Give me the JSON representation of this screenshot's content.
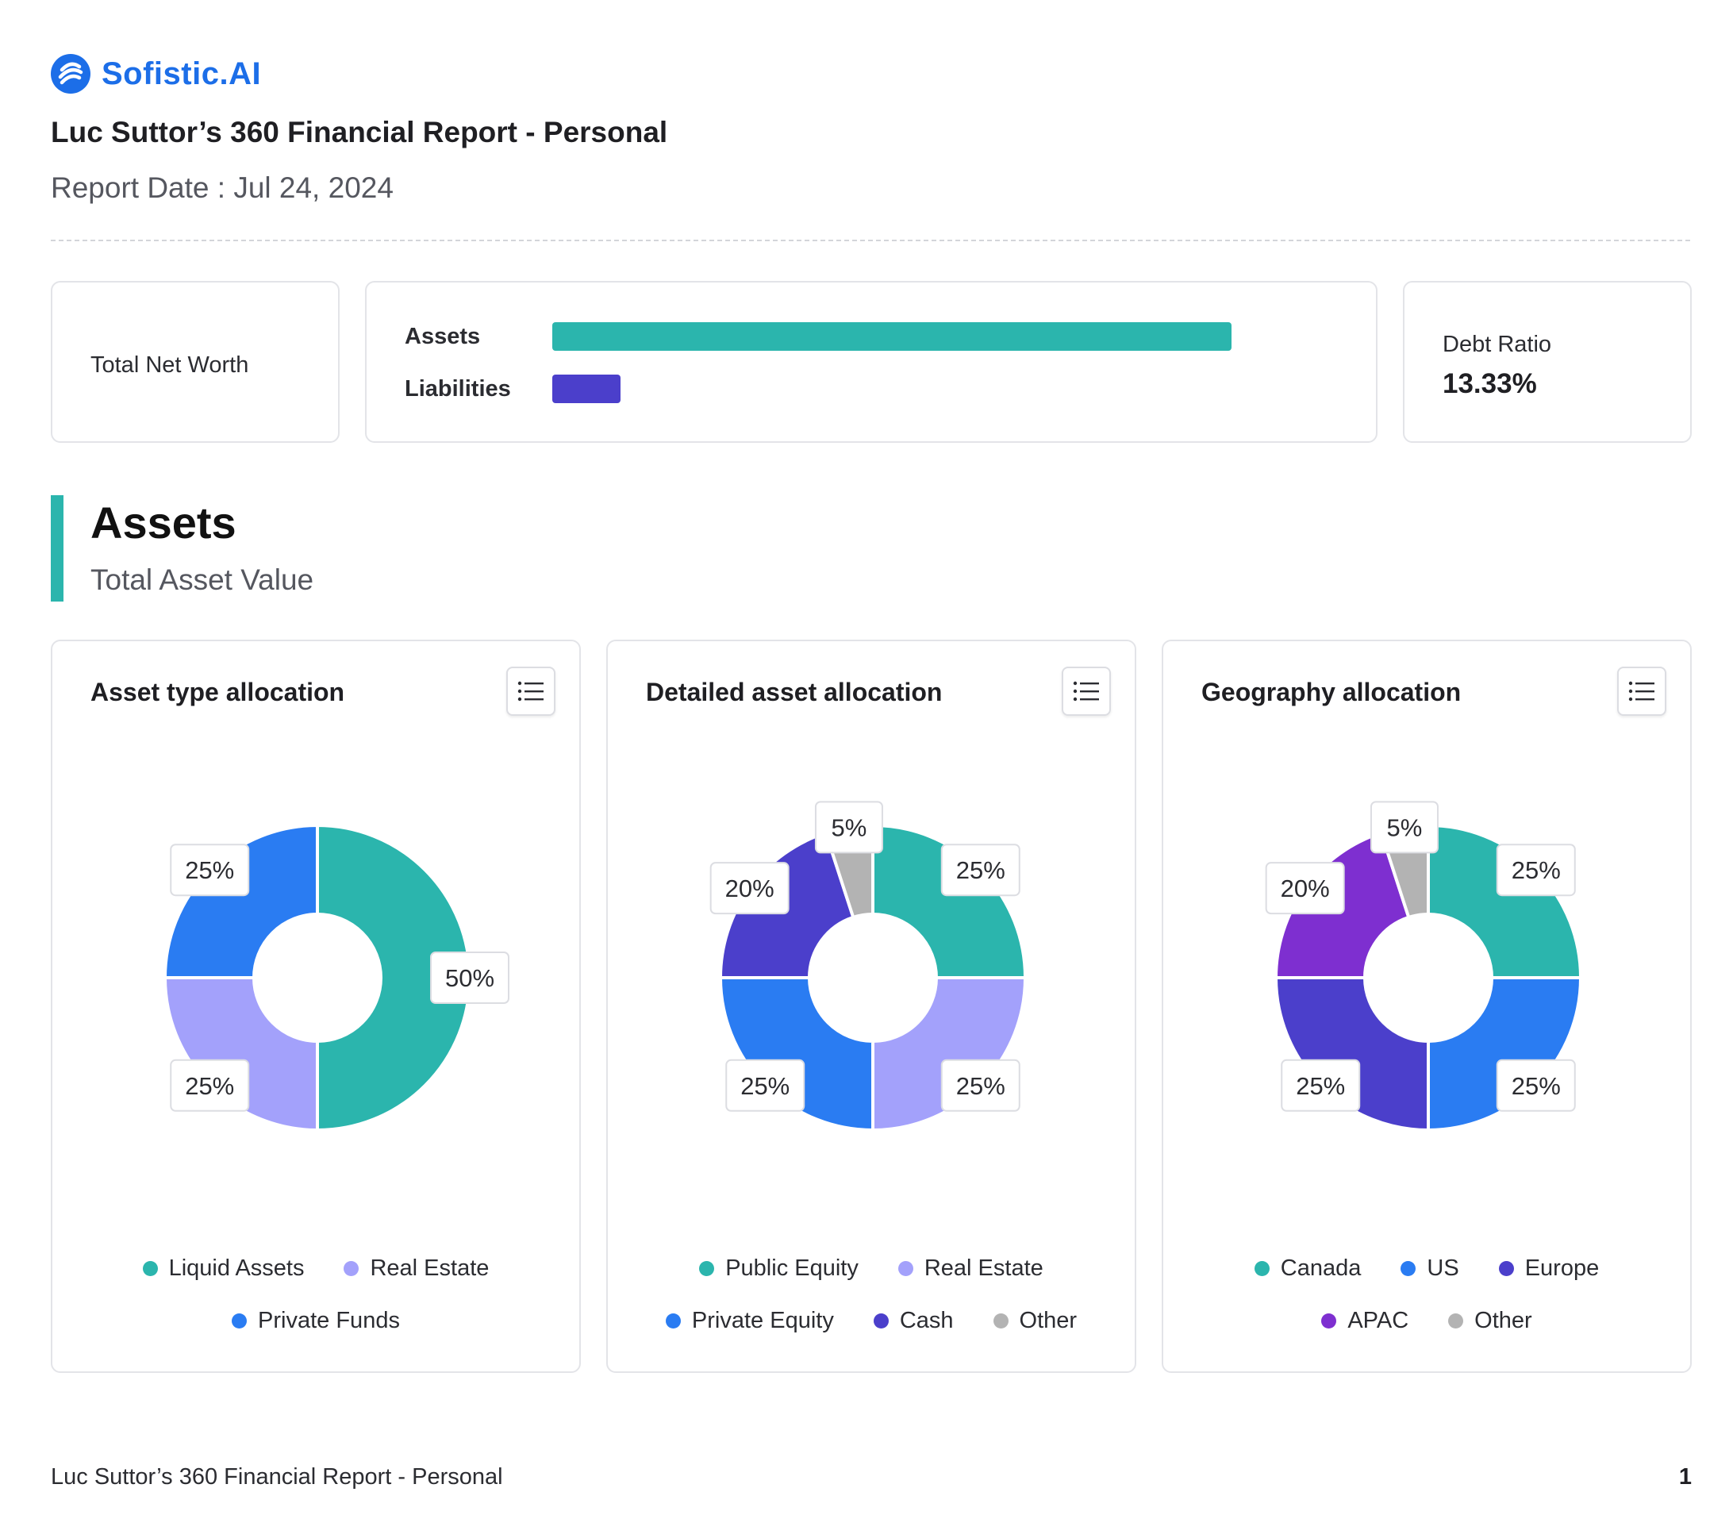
{
  "brand": {
    "name": "Sofistic.AI",
    "color": "#1c6ee8"
  },
  "header": {
    "title": "Luc Suttor’s 360 Financial Report - Personal",
    "report_date": "Report Date : Jul 24, 2024"
  },
  "summary": {
    "net_worth_label": "Total Net Worth",
    "assets_label": "Assets",
    "liabilities_label": "Liabilities",
    "assets_bar_fraction": 1.0,
    "liabilities_bar_fraction": 0.1,
    "assets_color": "#2bb5ad",
    "liabilities_color": "#4b3fcb",
    "debt_ratio_label": "Debt Ratio",
    "debt_ratio_value": "13.33%"
  },
  "section": {
    "title": "Assets",
    "subtitle": "Total Asset Value",
    "accent": "#2bb5ad"
  },
  "chart_data": [
    {
      "type": "pie",
      "title": "Asset type allocation",
      "series": [
        {
          "name": "Liquid Assets",
          "value": 50,
          "label": "50%",
          "color": "#2bb5ad"
        },
        {
          "name": "Real Estate",
          "value": 25,
          "label": "25%",
          "color": "#a3a1fb"
        },
        {
          "name": "Private Funds",
          "value": 25,
          "label": "25%",
          "color": "#2a7cf2"
        }
      ],
      "legend_rows": [
        [
          "Liquid Assets",
          "Real Estate"
        ],
        [
          "Private Funds"
        ]
      ]
    },
    {
      "type": "pie",
      "title": "Detailed asset allocation",
      "series": [
        {
          "name": "Public Equity",
          "value": 25,
          "label": "25%",
          "color": "#2bb5ad"
        },
        {
          "name": "Real Estate",
          "value": 25,
          "label": "25%",
          "color": "#a3a1fb"
        },
        {
          "name": "Private Equity",
          "value": 25,
          "label": "25%",
          "color": "#2a7cf2"
        },
        {
          "name": "Cash",
          "value": 20,
          "label": "20%",
          "color": "#4b3fcb"
        },
        {
          "name": "Other",
          "value": 5,
          "label": "5%",
          "color": "#b3b3b3"
        }
      ],
      "legend_rows": [
        [
          "Public Equity",
          "Real Estate"
        ],
        [
          "Private Equity",
          "Cash",
          "Other"
        ]
      ]
    },
    {
      "type": "pie",
      "title": "Geography allocation",
      "series": [
        {
          "name": "Canada",
          "value": 25,
          "label": "25%",
          "color": "#2bb5ad"
        },
        {
          "name": "US",
          "value": 25,
          "label": "25%",
          "color": "#2a7cf2"
        },
        {
          "name": "Europe",
          "value": 25,
          "label": "25%",
          "color": "#4b3fcb"
        },
        {
          "name": "APAC",
          "value": 20,
          "label": "20%",
          "color": "#7e2fd0"
        },
        {
          "name": "Other",
          "value": 5,
          "label": "5%",
          "color": "#b3b3b3"
        }
      ],
      "legend_rows": [
        [
          "Canada",
          "US",
          "Europe"
        ],
        [
          "APAC",
          "Other"
        ]
      ]
    }
  ],
  "footer": {
    "title": "Luc Suttor’s 360 Financial Report - Personal",
    "page": "1"
  },
  "icons": {
    "menu": "list-menu-icon",
    "logo": "sofistic-logo-icon"
  }
}
